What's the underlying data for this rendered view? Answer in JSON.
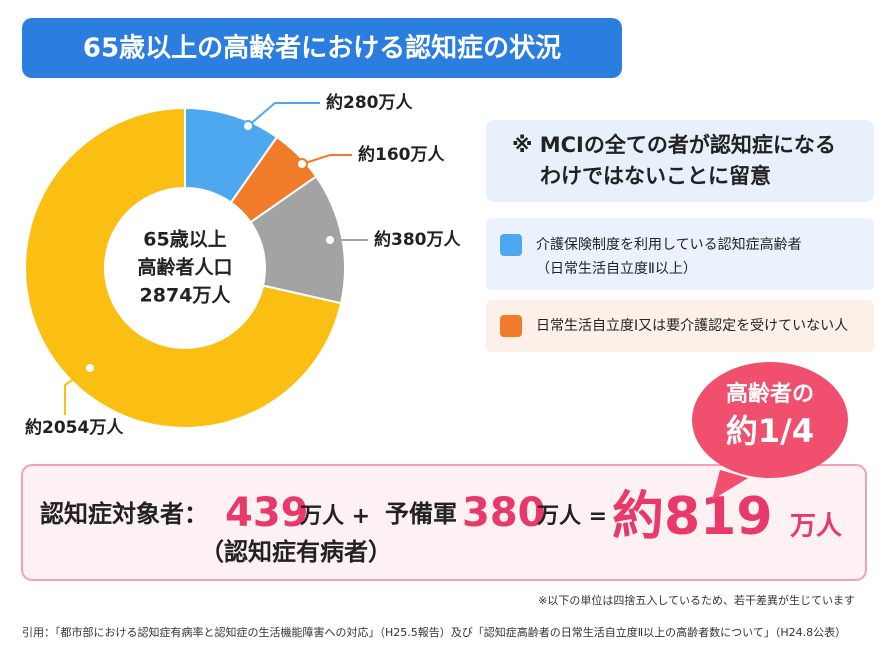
{
  "header": {
    "title": "65歳以上の高齢者における認知症の状況"
  },
  "chart_data": {
    "type": "pie",
    "donut": true,
    "categories": [
      null,
      null,
      null,
      null
    ],
    "values": [
      280,
      160,
      380,
      2054
    ],
    "value_labels": [
      "約280万人",
      "約160万人",
      "約380万人",
      "約2054万人"
    ],
    "colors": [
      "#4ea8f0",
      "#f07c2a",
      "#a3a3a3",
      "#fbbe12"
    ],
    "center_label": [
      "65歳以上",
      "高齢者人口",
      "2874万人"
    ]
  },
  "note": [
    "※ MCIの全ての者が認知症になる",
    "わけではないことに留意"
  ],
  "legend": [
    {
      "lines": [
        "介護保険制度を利用している認知症高齢者",
        "（日常生活自立度Ⅱ以上）"
      ]
    },
    {
      "lines": [
        "日常生活自立度Ⅰ又は要介護認定を受けていない人"
      ]
    }
  ],
  "bubble": [
    "高齢者の",
    "約1/4"
  ],
  "formula": {
    "label": "認知症対象者：",
    "a": "439",
    "unit_a": "万人 +",
    "b_label": "予備軍",
    "b": "380",
    "unit_b": "万人 =",
    "total": "約819",
    "unit_total": "万人",
    "sub": "（認知症有病者）"
  },
  "footnote": "※以下の単位は四捨五入しているため、若干差異が生じています",
  "citation": "引用：「都市部における認知症有病率と認知症の生活機能障害への対応」（H25.5報告）及び「認知症高齢者の日常生活自立度Ⅱ以上の高齢者数について」（H24.8公表）"
}
